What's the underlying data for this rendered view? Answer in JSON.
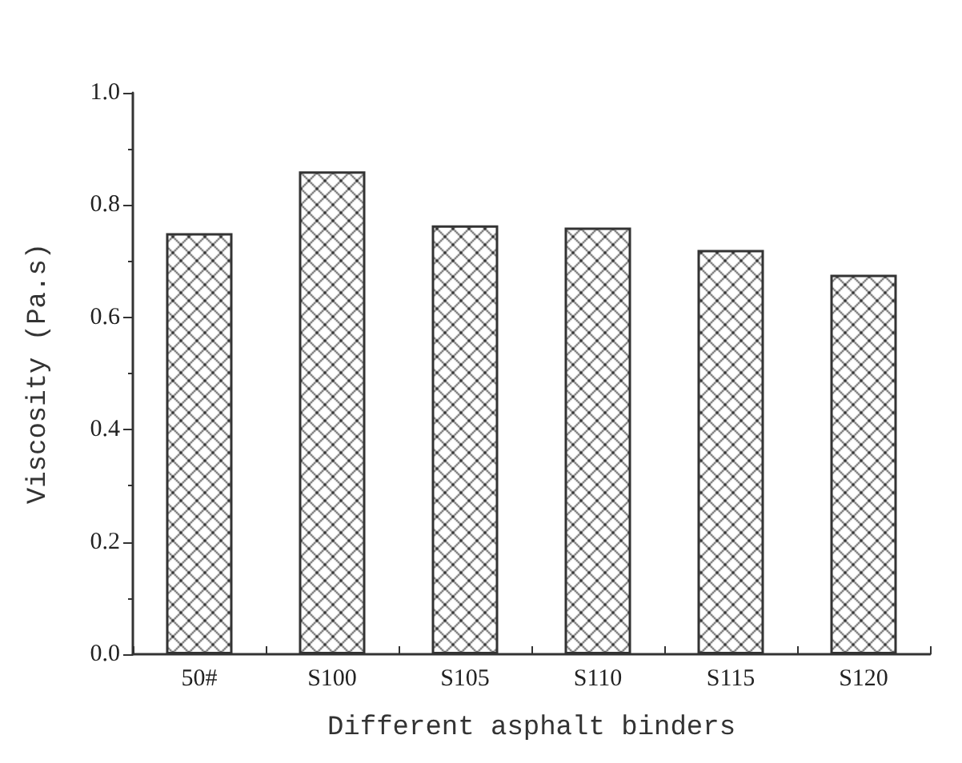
{
  "chart_data": {
    "type": "bar",
    "xlabel": "Different asphalt binders",
    "ylabel": "Viscosity (Pa.s)",
    "categories": [
      "50#",
      "S100",
      "S105",
      "S110",
      "S115",
      "S120"
    ],
    "values": [
      0.75,
      0.86,
      0.764,
      0.76,
      0.72,
      0.676
    ],
    "color": "#333333",
    "ylim": [
      0,
      1
    ],
    "yticks": [
      {
        "value": 0,
        "label": "0.0"
      },
      0.2,
      0.4,
      0.6,
      0.8,
      {
        "value": 1,
        "label": "1.0"
      }
    ],
    "grid": false
  }
}
